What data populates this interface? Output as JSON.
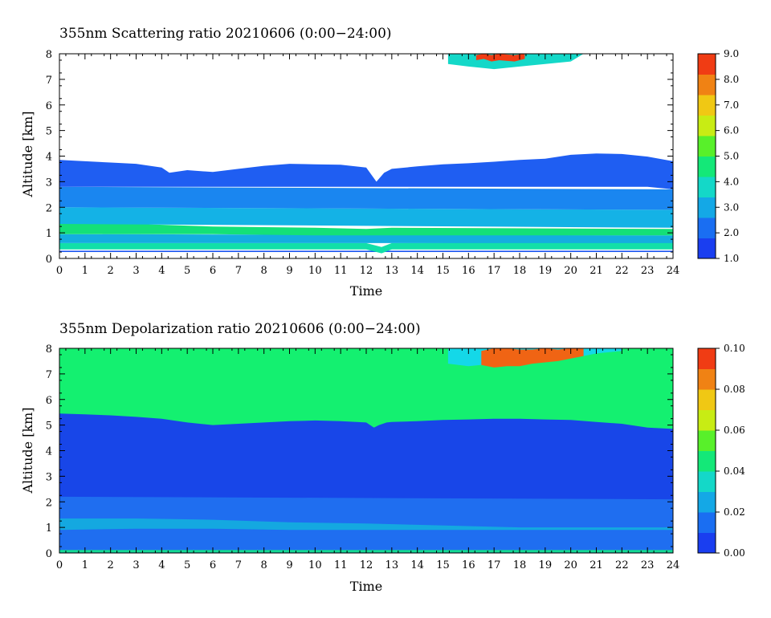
{
  "chart_data": [
    {
      "type": "heatmap",
      "title": "355nm Scattering ratio  20210606 (0:00−24:00)",
      "xlabel": "Time",
      "ylabel": "Altitude [km]",
      "xlim": [
        0,
        24
      ],
      "ylim": [
        0,
        8
      ],
      "x_ticks": [
        "0",
        "1",
        "2",
        "3",
        "4",
        "5",
        "6",
        "7",
        "8",
        "9",
        "10",
        "11",
        "12",
        "13",
        "14",
        "15",
        "16",
        "17",
        "18",
        "19",
        "20",
        "21",
        "22",
        "23",
        "24"
      ],
      "y_ticks": [
        "0",
        "1",
        "2",
        "3",
        "4",
        "5",
        "6",
        "7",
        "8"
      ],
      "colorbar": {
        "min": 1.0,
        "max": 9.0,
        "ticks": [
          "1.0",
          "2.0",
          "3.0",
          "4.0",
          "5.0",
          "6.0",
          "7.0",
          "8.0",
          "9.0"
        ]
      },
      "layers": [
        {
          "name": "surface-band",
          "color": "#1a56f0",
          "x": [
            0,
            24
          ],
          "y_bottom": [
            0.25,
            0.25
          ],
          "y_top": [
            0.3,
            0.3
          ]
        },
        {
          "name": "boundary-layer",
          "color": "#12e0a8",
          "x": [
            0,
            12,
            12.6,
            13,
            24
          ],
          "y_bottom": [
            0.35,
            0.35,
            0.2,
            0.35,
            0.35
          ],
          "y_top": [
            0.6,
            0.6,
            0.45,
            0.6,
            0.65
          ]
        },
        {
          "name": "aerosol-0-1km",
          "color": "#14aee0",
          "x": [
            0,
            24
          ],
          "y_bottom": [
            0.6,
            0.6
          ],
          "y_top": [
            0.95,
            0.9
          ]
        },
        {
          "name": "aerosol-1-1.4km",
          "color": "#14e078",
          "x": [
            0,
            3,
            6,
            10,
            12,
            13,
            24
          ],
          "y_bottom": [
            0.95,
            0.95,
            0.95,
            0.9,
            0.9,
            0.9,
            0.9
          ],
          "y_top": [
            1.35,
            1.35,
            1.25,
            1.2,
            1.15,
            1.2,
            1.15
          ]
        },
        {
          "name": "aerosol-1.4-2km",
          "color": "#14b2e6",
          "x": [
            0,
            24
          ],
          "y_bottom": [
            1.35,
            1.2
          ],
          "y_top": [
            2.0,
            1.9
          ]
        },
        {
          "name": "aerosol-2-2.8km",
          "color": "#1a86f0",
          "x": [
            0,
            24
          ],
          "y_bottom": [
            2.0,
            1.9
          ],
          "y_top": [
            2.8,
            2.7
          ]
        },
        {
          "name": "aerosol-top",
          "color": "#1f5ef2",
          "x": [
            0,
            1,
            2,
            3,
            4,
            4.3,
            5,
            6,
            7,
            8,
            9,
            10,
            11,
            12,
            12.4,
            12.7,
            13,
            14,
            15,
            16,
            17,
            18,
            19,
            20,
            21,
            22,
            23,
            24
          ],
          "y_bottom": [
            2.8,
            2.8,
            2.8,
            2.8,
            2.8,
            2.8,
            2.8,
            2.8,
            2.8,
            2.8,
            2.8,
            2.8,
            2.8,
            2.8,
            2.8,
            2.8,
            2.8,
            2.8,
            2.8,
            2.8,
            2.8,
            2.8,
            2.8,
            2.8,
            2.8,
            2.8,
            2.8,
            2.7
          ],
          "y_top": [
            3.85,
            3.8,
            3.75,
            3.7,
            3.55,
            3.35,
            3.45,
            3.38,
            3.5,
            3.62,
            3.7,
            3.68,
            3.66,
            3.55,
            3.0,
            3.35,
            3.5,
            3.6,
            3.68,
            3.72,
            3.78,
            3.85,
            3.9,
            4.05,
            4.1,
            4.08,
            3.98,
            3.8
          ]
        },
        {
          "name": "cloud-upper",
          "color": "#14d8c8",
          "x": [
            15.2,
            16,
            17,
            18,
            19,
            20,
            20.5
          ],
          "y_bottom": [
            7.6,
            7.5,
            7.4,
            7.5,
            7.6,
            7.7,
            8.0
          ],
          "y_top": [
            8,
            8,
            8,
            8,
            8,
            8,
            8
          ]
        },
        {
          "name": "cloud-core",
          "color": "#f03c14",
          "x": [
            16.3,
            16.6,
            16.9,
            17.2,
            17.8,
            18.2
          ],
          "y_bottom": [
            7.75,
            7.8,
            7.7,
            7.75,
            7.7,
            7.8
          ],
          "y_top": [
            7.95,
            8,
            7.95,
            8,
            7.95,
            8
          ]
        }
      ]
    },
    {
      "type": "heatmap",
      "title": "355nm Depolarization ratio  20210606 (0:00−24:00)",
      "xlabel": "Time",
      "ylabel": "Altitude [km]",
      "xlim": [
        0,
        24
      ],
      "ylim": [
        0,
        8
      ],
      "x_ticks": [
        "0",
        "1",
        "2",
        "3",
        "4",
        "5",
        "6",
        "7",
        "8",
        "9",
        "10",
        "11",
        "12",
        "13",
        "14",
        "15",
        "16",
        "17",
        "18",
        "19",
        "20",
        "21",
        "22",
        "23",
        "24"
      ],
      "y_ticks": [
        "0",
        "1",
        "2",
        "3",
        "4",
        "5",
        "6",
        "7",
        "8"
      ],
      "colorbar": {
        "min": 0.0,
        "max": 0.1,
        "ticks": [
          "0.00",
          "0.02",
          "0.04",
          "0.06",
          "0.08",
          "0.10"
        ]
      },
      "layers": [
        {
          "name": "background-high",
          "color": "#14f070",
          "x": [
            0,
            24
          ],
          "y_bottom": [
            0,
            0
          ],
          "y_top": [
            8,
            8
          ]
        },
        {
          "name": "low-depol-layer",
          "color": "#1846e8",
          "x": [
            0,
            1,
            2,
            3,
            4,
            5,
            6,
            7,
            8,
            9,
            10,
            11,
            12,
            12.3,
            12.5,
            12.8,
            13,
            14,
            15,
            16,
            17,
            18,
            19,
            20,
            21,
            22,
            23,
            24
          ],
          "y_bottom": [
            0,
            0,
            0,
            0,
            0,
            0,
            0,
            0,
            0,
            0,
            0,
            0,
            0,
            0,
            0,
            0,
            0,
            0,
            0,
            0,
            0,
            0,
            0,
            0,
            0,
            0,
            0,
            0
          ],
          "y_top": [
            5.45,
            5.42,
            5.38,
            5.32,
            5.25,
            5.1,
            5.0,
            5.05,
            5.1,
            5.15,
            5.18,
            5.15,
            5.1,
            4.9,
            5.0,
            5.1,
            5.12,
            5.15,
            5.2,
            5.22,
            5.25,
            5.25,
            5.22,
            5.2,
            5.12,
            5.05,
            4.9,
            4.85
          ]
        },
        {
          "name": "lower-layer",
          "color": "#1f6ef0",
          "x": [
            0,
            24
          ],
          "y_bottom": [
            0.1,
            0.1
          ],
          "y_top": [
            2.2,
            2.1
          ]
        },
        {
          "name": "band-1km",
          "color": "#14a8e0",
          "x": [
            0,
            3,
            6,
            9,
            12,
            14,
            18,
            24
          ],
          "y_bottom": [
            0.9,
            0.95,
            0.95,
            0.9,
            0.9,
            0.9,
            0.9,
            0.9
          ],
          "y_top": [
            1.35,
            1.35,
            1.3,
            1.2,
            1.15,
            1.1,
            1.0,
            1.0
          ]
        },
        {
          "name": "surface-depol",
          "color": "#14d890",
          "x": [
            0,
            24
          ],
          "y_bottom": [
            0.02,
            0.02
          ],
          "y_top": [
            0.12,
            0.12
          ]
        },
        {
          "name": "cloud-depol",
          "color": "#14d8e8",
          "x": [
            15.2,
            16,
            17,
            18,
            19,
            20,
            21,
            22
          ],
          "y_bottom": [
            7.4,
            7.3,
            7.4,
            7.5,
            7.5,
            7.6,
            7.8,
            7.9
          ],
          "y_top": [
            8,
            8,
            8,
            8,
            8,
            8,
            8,
            8
          ]
        },
        {
          "name": "cloud-depol-core",
          "color": "#f06414",
          "x": [
            16.5,
            17,
            17.5,
            18,
            18.5,
            19,
            19.5,
            20,
            20.5
          ],
          "y_bottom": [
            7.35,
            7.25,
            7.3,
            7.3,
            7.4,
            7.45,
            7.5,
            7.6,
            7.7
          ],
          "y_top": [
            7.9,
            8,
            8,
            7.95,
            7.95,
            8,
            7.95,
            8,
            8
          ]
        }
      ]
    }
  ]
}
